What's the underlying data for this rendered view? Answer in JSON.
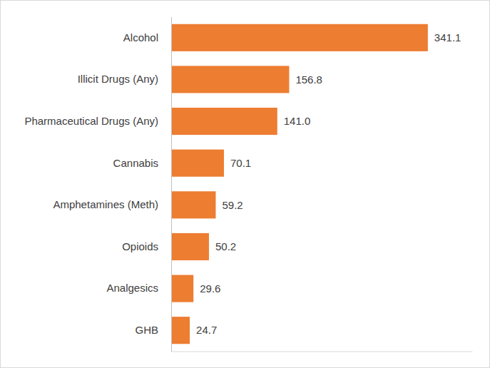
{
  "chart_data": {
    "type": "bar",
    "orientation": "horizontal",
    "categories": [
      "Alcohol",
      "Illicit Drugs (Any)",
      "Pharmaceutical Drugs (Any)",
      "Cannabis",
      "Amphetamines (Meth)",
      "Opioids",
      "Analgesics",
      "GHB"
    ],
    "values": [
      341.1,
      156.8,
      141.0,
      70.1,
      59.2,
      50.2,
      29.6,
      24.7
    ],
    "value_labels": [
      "341.1",
      "156.8",
      "141.0",
      "70.1",
      "59.2",
      "50.2",
      "29.6",
      "24.7"
    ],
    "color": "#ed7d31",
    "xlim": [
      0,
      400
    ],
    "data_labels": true,
    "tick_labels": "y",
    "grid": false
  }
}
